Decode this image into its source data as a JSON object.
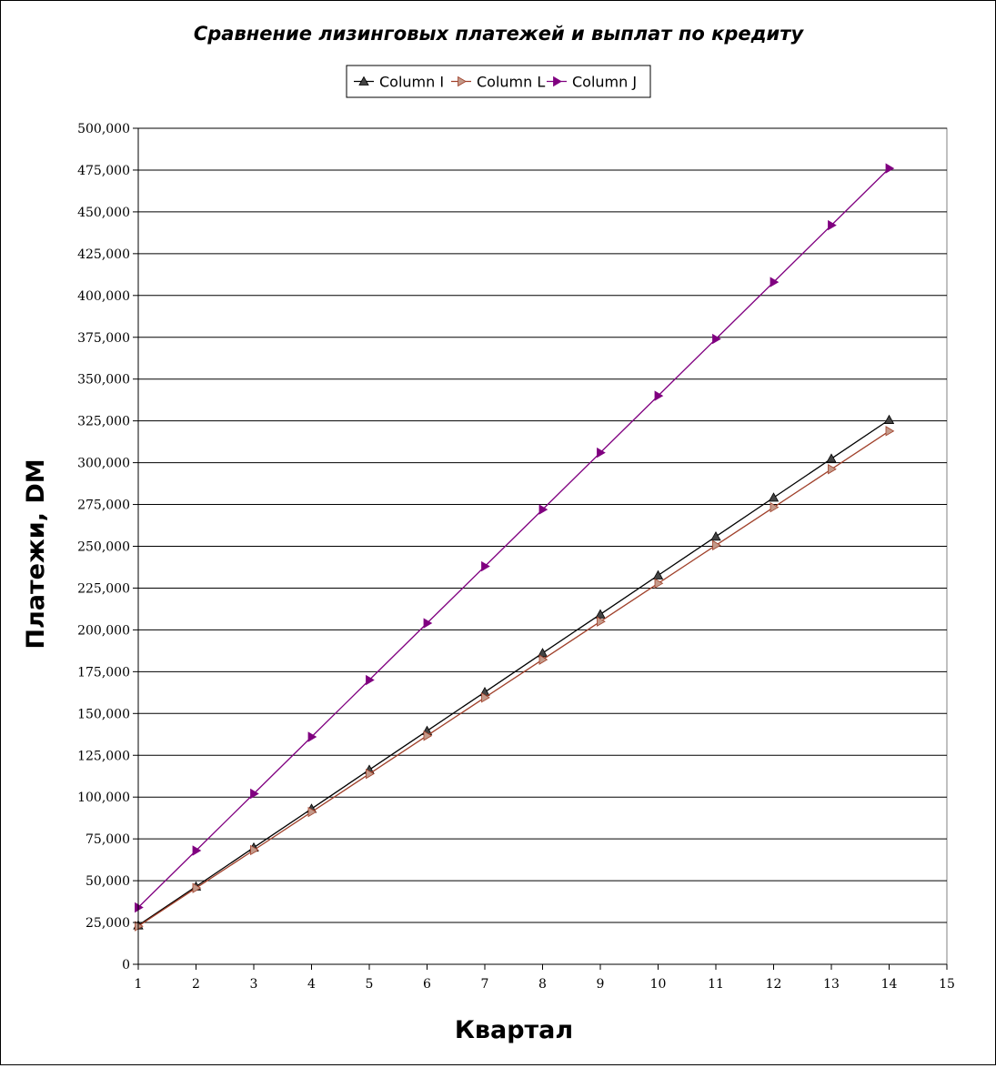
{
  "chart_data": {
    "type": "line",
    "title": "Сравнение лизинговых платежей и выплат по кредиту",
    "xlabel": "Квартал",
    "ylabel": "Платежи, DM",
    "xlim": [
      1,
      15
    ],
    "ylim": [
      0,
      500000
    ],
    "x_ticks": [
      1,
      2,
      3,
      4,
      5,
      6,
      7,
      8,
      9,
      10,
      11,
      12,
      13,
      14,
      15
    ],
    "y_ticks": [
      0,
      25000,
      50000,
      75000,
      100000,
      125000,
      150000,
      175000,
      200000,
      225000,
      250000,
      275000,
      300000,
      325000,
      350000,
      375000,
      400000,
      425000,
      450000,
      475000,
      500000
    ],
    "y_tick_labels": [
      "0",
      "25,000",
      "50,000",
      "75,000",
      "100,000",
      "125,000",
      "150,000",
      "175,000",
      "200,000",
      "225,000",
      "250,000",
      "275,000",
      "300,000",
      "325,000",
      "350,000",
      "375,000",
      "400,000",
      "425,000",
      "450,000",
      "475,000",
      "500,000"
    ],
    "grid": "horizontal",
    "legend_position": "top-center",
    "x": [
      1,
      2,
      3,
      4,
      5,
      6,
      7,
      8,
      9,
      10,
      11,
      12,
      13,
      14
    ],
    "series": [
      {
        "name": "Column I",
        "color": "#000000",
        "marker_color": "#444444",
        "marker": "triangle-up",
        "values": [
          23300,
          46500,
          69800,
          93000,
          116300,
          139600,
          162800,
          186100,
          209300,
          232600,
          255800,
          279100,
          302400,
          325600
        ]
      },
      {
        "name": "Column L",
        "color": "#a0402a",
        "marker_color": "#c49a8a",
        "marker": "triangle-right",
        "values": [
          22800,
          45600,
          68300,
          91100,
          113900,
          136700,
          159500,
          182200,
          205000,
          227800,
          250600,
          273300,
          296100,
          318900
        ]
      },
      {
        "name": "Column J",
        "color": "#800080",
        "marker_color": "#800080",
        "marker": "triangle-right",
        "values": [
          34000,
          68000,
          102000,
          136000,
          170000,
          204000,
          238000,
          272000,
          306000,
          340000,
          374000,
          408000,
          442000,
          476000
        ]
      }
    ]
  }
}
